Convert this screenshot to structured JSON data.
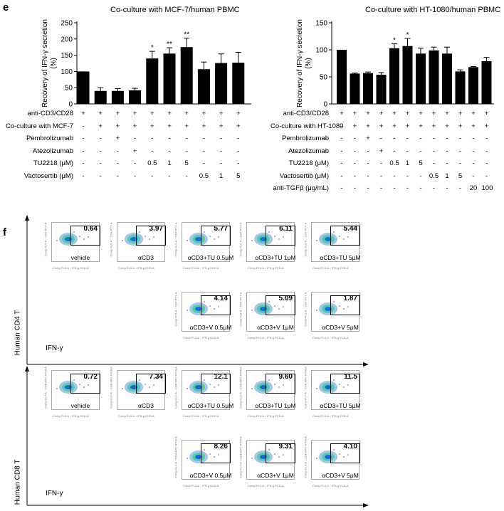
{
  "panel_e_label": "e",
  "panel_f_label": "f",
  "chart_data": [
    {
      "type": "bar",
      "title": "Co-culture with MCF-7/human PBMC",
      "ylabel": "Recovery of IFN-γ secretion (%)",
      "ylim": [
        0,
        250
      ],
      "yticks": [
        "0",
        "50",
        "100",
        "150",
        "200",
        "250"
      ],
      "values": [
        100,
        40,
        40,
        42,
        140,
        155,
        175,
        107,
        126,
        127
      ],
      "errors": [
        0,
        10,
        7,
        6,
        22,
        18,
        28,
        22,
        28,
        32
      ],
      "significance": [
        "",
        "",
        "",
        "",
        "*",
        "**",
        "**",
        "",
        "",
        ""
      ],
      "conditions": [
        {
          "label": "anti-CD3/CD28",
          "values": [
            "+",
            "+",
            "+",
            "+",
            "+",
            "+",
            "+",
            "+",
            "+",
            "+"
          ]
        },
        {
          "label": "Co-culture with MCF-7",
          "values": [
            "-",
            "+",
            "+",
            "+",
            "+",
            "+",
            "+",
            "+",
            "+",
            "+"
          ]
        },
        {
          "label": "Pembrolizumab",
          "values": [
            "-",
            "-",
            "+",
            "-",
            "-",
            "-",
            "-",
            "-",
            "-",
            "-"
          ]
        },
        {
          "label": "Atezolizumab",
          "values": [
            "-",
            "-",
            "-",
            "+",
            "-",
            "-",
            "-",
            "-",
            "-",
            "-"
          ]
        },
        {
          "label": "TU2218  (μM)",
          "values": [
            "-",
            "-",
            "-",
            "-",
            "0.5",
            "1",
            "5",
            "-",
            "-",
            "-"
          ]
        },
        {
          "label": "Vactosertib  (μM)",
          "values": [
            "-",
            "-",
            "-",
            "-",
            "-",
            "-",
            "-",
            "0.5",
            "1",
            "5"
          ]
        }
      ]
    },
    {
      "type": "bar",
      "title": "Co-culture with HT-1080/human  PBMC",
      "ylabel": "Recovery of IFN-γ secretion (%)",
      "ylim": [
        0,
        150
      ],
      "yticks": [
        "0",
        "50",
        "100",
        "150"
      ],
      "values": [
        100,
        56,
        57,
        54,
        103,
        107,
        93,
        99,
        93,
        60,
        68,
        79
      ],
      "errors": [
        0,
        1,
        2,
        4,
        8,
        14,
        10,
        6,
        12,
        3,
        1,
        7
      ],
      "significance": [
        "",
        "",
        "",
        "",
        "*",
        "*",
        "",
        "",
        "",
        "",
        "",
        ""
      ],
      "conditions": [
        {
          "label": "anti-CD3/CD28",
          "values": [
            "+",
            "+",
            "+",
            "+",
            "+",
            "+",
            "+",
            "+",
            "+",
            "+",
            "+",
            "+"
          ]
        },
        {
          "label": "Co-culture with HT-1080",
          "values": [
            "-",
            "+",
            "+",
            "+",
            "+",
            "+",
            "+",
            "+",
            "+",
            "+",
            "+",
            "+"
          ]
        },
        {
          "label": "Pembrolizumab",
          "values": [
            "-",
            "-",
            "+",
            "-",
            "-",
            "-",
            "-",
            "-",
            "-",
            "-",
            "-",
            "-"
          ]
        },
        {
          "label": "Atezolizumab",
          "values": [
            "-",
            "-",
            "-",
            "+",
            "-",
            "-",
            "-",
            "-",
            "-",
            "-",
            "-",
            "-"
          ]
        },
        {
          "label": "TU2218  (μM)",
          "values": [
            "-",
            "-",
            "-",
            "-",
            "0.5",
            "1",
            "5",
            "-",
            "-",
            "-",
            "-",
            "-"
          ]
        },
        {
          "label": "Vactosertib  (μM)",
          "values": [
            "-",
            "-",
            "-",
            "-",
            "-",
            "-",
            "-",
            "0.5",
            "1",
            "5",
            "-",
            "-"
          ]
        },
        {
          "label": "anti-TGFβ  (μg/mL)",
          "values": [
            "-",
            "-",
            "-",
            "-",
            "-",
            "-",
            "-",
            "-",
            "-",
            "-",
            "20",
            "100"
          ]
        }
      ]
    }
  ],
  "flow": {
    "cd4": {
      "group_label": "Human CD4 T",
      "xaxis_label": "IFN-γ",
      "ylab": "Comp-FL5-A :: CD4 PC7-A",
      "xlab": "Comp-FL3-A :: IFN-g ECD-A",
      "row1": [
        {
          "value": "0.64",
          "cond": "vehicle"
        },
        {
          "value": "3.97",
          "cond": "αCD3"
        },
        {
          "value": "5.77",
          "cond": "αCD3+TU 0.5μM"
        },
        {
          "value": "6.11",
          "cond": "αCD3+TU 1μM"
        },
        {
          "value": "5.44",
          "cond": "αCD3+TU 5μM"
        }
      ],
      "row2": [
        {
          "value": "4.14",
          "cond": "αCD3+V 0.5μM"
        },
        {
          "value": "5.09",
          "cond": "αCD3+V 1μM"
        },
        {
          "value": "1.87",
          "cond": "αCD3+V 5μM"
        }
      ]
    },
    "cd8": {
      "group_label": "Human CD8 T",
      "xaxis_label": "IFN-γ",
      "ylab": "Comp-FL7-A :: CD8 APC-A700-A",
      "xlab": "Comp-FL3-A :: IFN-g ECD-A",
      "row1": [
        {
          "value": "0.72",
          "cond": "vehicle"
        },
        {
          "value": "7.34",
          "cond": "αCD3"
        },
        {
          "value": "12.1",
          "cond": "αCD3+TU 0.5μM"
        },
        {
          "value": "9.60",
          "cond": "αCD3+TU 1μM"
        },
        {
          "value": "11.5",
          "cond": "αCD3+TU 5μM"
        }
      ],
      "row2": [
        {
          "value": "8.26",
          "cond": "αCD3+V 0.5μM"
        },
        {
          "value": "9.31",
          "cond": "αCD3+V 1μM"
        },
        {
          "value": "4.10",
          "cond": "αCD3+V 5μM"
        }
      ]
    }
  }
}
